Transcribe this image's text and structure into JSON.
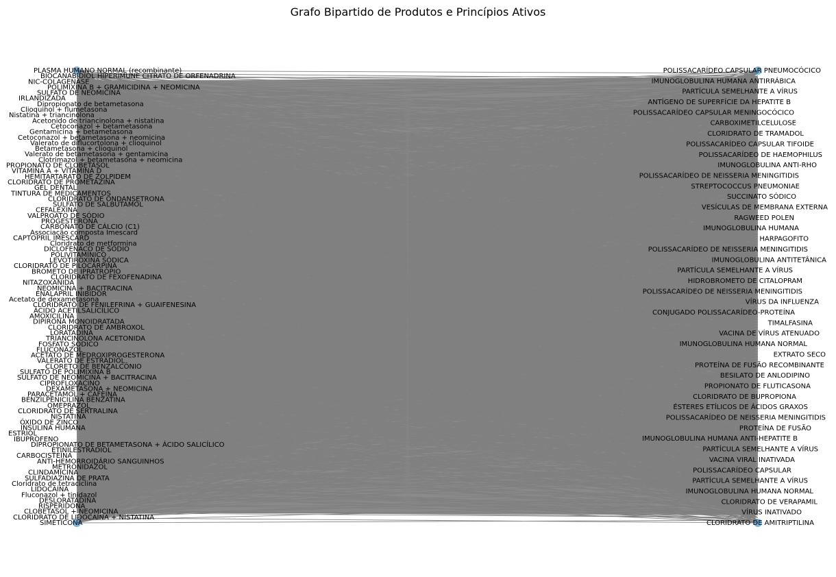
{
  "figure": {
    "title": "Grafo Bipartido de Produtos e Princípios Ativos"
  },
  "colors": {
    "edge": "#808080",
    "product_node": "#1f77b4",
    "ingredient_node": "#1f77b4",
    "background": "#ffffff",
    "label": "#000000"
  },
  "product_labels": [
    "PLASMA HUMANO NORMAL (recombinante)",
    "BIOCANABIDIOL HIPERIMUNE CITRATO DE ORFENADRINA",
    "NIC-COLAGENASE",
    "POLIMIXINA B + GRAMICIDINA + NEOMICINA",
    "SULFATO DE NEOMICINA",
    "IRLANDIZADA",
    "Dipropionato de betametasona",
    "Clioquinol + flumetasona",
    "Nistatina + triancinolona",
    "Acetonido de triancinolona + nistatina",
    "Cetoconazol + betametasona",
    "Gentamicina + betametasona",
    "Cetoconazol + betametasona + neomicina",
    "Valerato de diflucortolona + clioquinol",
    "Betametasona + clioquinol",
    "Valerato de betametasona + gentamicina",
    "Clotrimazol + betametasona + neomicina",
    "PROPIONATO DE CLOBETASOL",
    "VITAMINA A + VITAMINA D",
    "HEMITARTARATO DE ZOLPIDEM",
    "CLORIDRATO DE PROMETAZINA",
    "GEL DENTAL",
    "TINTURA DE MEDICAMENTOS",
    "CLORIDRATO DE ONDANSETRONA",
    "SULFATO DE SALBUTAMOL",
    "CEFALEXINA",
    "VALPROATO DE SÓDIO",
    "PROGESTERONA",
    "CARBONATO DE CÁLCIO (C1)",
    "Associação composta Imescard",
    "CAPTOPRIL IMESCARD",
    "Cloridrato de metformina",
    "DICLOFENACO DE SÓDIO",
    "POLIVITAMÍNICO",
    "LEVOTIROXINA SÓDICA",
    "CLORIDRATO DE PILOCARPINA",
    "BROMETO DE IPRATRÓPIO",
    "CLORIDRATO DE FEXOFENADINA",
    "NITAZOXANIDA",
    "NEOMICINA + BACITRACINA",
    "ENALAPRIL INIBIDOR",
    "Acetato de dexametasona",
    "CLORIDRATO DE FENILEFRINA + GUAIFENESINA",
    "ÁCIDO ACETILSALICÍLICO",
    "AMOXICILINA",
    "DIPIRONA MONOIDRATADA",
    "CLORIDRATO DE AMBROXOL",
    "LORATADINA",
    "TRIANCINOLONA ACETONIDA",
    "FOSFATO SÓDICO",
    "FLUCONAZOL",
    "ACETATO DE MEDROXIPROGESTERONA",
    "VALERATO DE ESTRADIOL",
    "CLORETO DE BENZALCÔNIO",
    "SULFATO DE POLIMIXINA B",
    "SULFATO DE NEOMICINA + BACITRACINA",
    "CIPROFLOXACINO",
    "DEXAMETASONA + NEOMICINA",
    "PARACETAMOL + CAFEÍNA",
    "BENZILPENICILINA BENZATINA",
    "OMEPRAZOL",
    "CLORIDRATO DE SERTRALINA",
    "NISTATINA",
    "ÓXIDO DE ZINCO",
    "INSULINA HUMANA",
    "ESTRIOL",
    "IBUPROFENO",
    "DIPROPIONATO DE BETAMETASONA + ÁCIDO SALICÍLICO",
    "ETINILESTRADIOL",
    "CARBOCISTEÍNA",
    "ANTI-HEMORROIDÁRIO SANGUINHOS",
    "METRONIDAZOL",
    "CLINDAMICINA",
    "SULFADIAZINA DE PRATA",
    "Cloridrato de tetraciclina",
    "LIDOCAÍNA",
    "Fluconazol + tinidazol",
    "DESLORATADINA",
    "RISPERIDONA",
    "CLOBETASOL + NEOMICINA",
    "CLORIDRATO DE LIDOCAÍNA + NISTATINA",
    "SIMETICONA"
  ],
  "ingredient_labels": [
    "POLISSACARÍDEO CAPSULAR PNEUMOCÓCICO",
    "IMUNOGLOBULINA HUMANA ANTIRRÁBICA",
    "PARTÍCULA SEMELHANTE A VÍRUS",
    "ANTÍGENO DE SUPERFÍCIE DA HEPATITE B",
    "POLISSACARÍDEO CAPSULAR MENINGOCÓCICO",
    "CARBOXIMETILCELULOSE",
    "CLORIDRATO DE TRAMADOL",
    "POLISSACARÍDEO CAPSULAR TIFOIDE",
    "POLISSACARÍDEO DE HAEMOPHILUS",
    "IMUNOGLOBULINA ANTI-RHO",
    "POLISSACARÍDEO DE NEISSERIA MENINGITIDIS",
    "STREPTOCOCCUS PNEUMONIAE",
    "SUCCINATO SÓDICO",
    "VESÍCULAS DE MEMBRANA EXTERNA",
    "RAGWEED POLEN",
    "IMUNOGLOBULINA HUMANA",
    "HARPAGOFITO",
    "POLISSACARÍDEO DE NEISSERIA MENINGITIDIS",
    "IMUNOGLOBULINA ANTITETÂNICA",
    "PARTÍCULA SEMELHANTE A VÍRUS",
    "HIDROBROMETO DE CITALOPRAM",
    "POLISSACARÍDEO DE NEISSERIA MENINGITIDIS",
    "VÍRUS DA INFLUENZA",
    "CONJUGADO POLISSACARÍDEO-PROTEÍNA",
    "TIMALFASINA",
    "VACINA DE VÍRUS ATENUADO",
    "IMUNOGLOBULINA HUMANA NORMAL",
    "EXTRATO SECO",
    "PROTEÍNA DE FUSÃO RECOMBINANTE",
    "BESILATO DE ANLODIPINO",
    "PROPIONATO DE FLUTICASONA",
    "CLORIDRATO DE BUPROPIONA",
    "ÉSTERES ETÍLICOS DE ÁCIDOS GRAXOS",
    "POLISSACARÍDEO DE NEISSERIA MENINGITIDIS",
    "PROTEÍNA DE FUSÃO",
    "IMUNOGLOBULINA HUMANA ANTI-HEPATITE B",
    "PARTÍCULA SEMELHANTE A VÍRUS",
    "VACINA VIRAL INATIVADA",
    "POLISSACARÍDEO CAPSULAR",
    "PARTÍCULA SEMELHANTE A VÍRUS",
    "IMUNOGLOBULINA HUMANA NORMAL",
    "CLORIDRATO DE VERAPAMIL",
    "VÍRUS INATIVADO",
    "CLORIDRATO DE AMITRIPTILINA"
  ]
}
